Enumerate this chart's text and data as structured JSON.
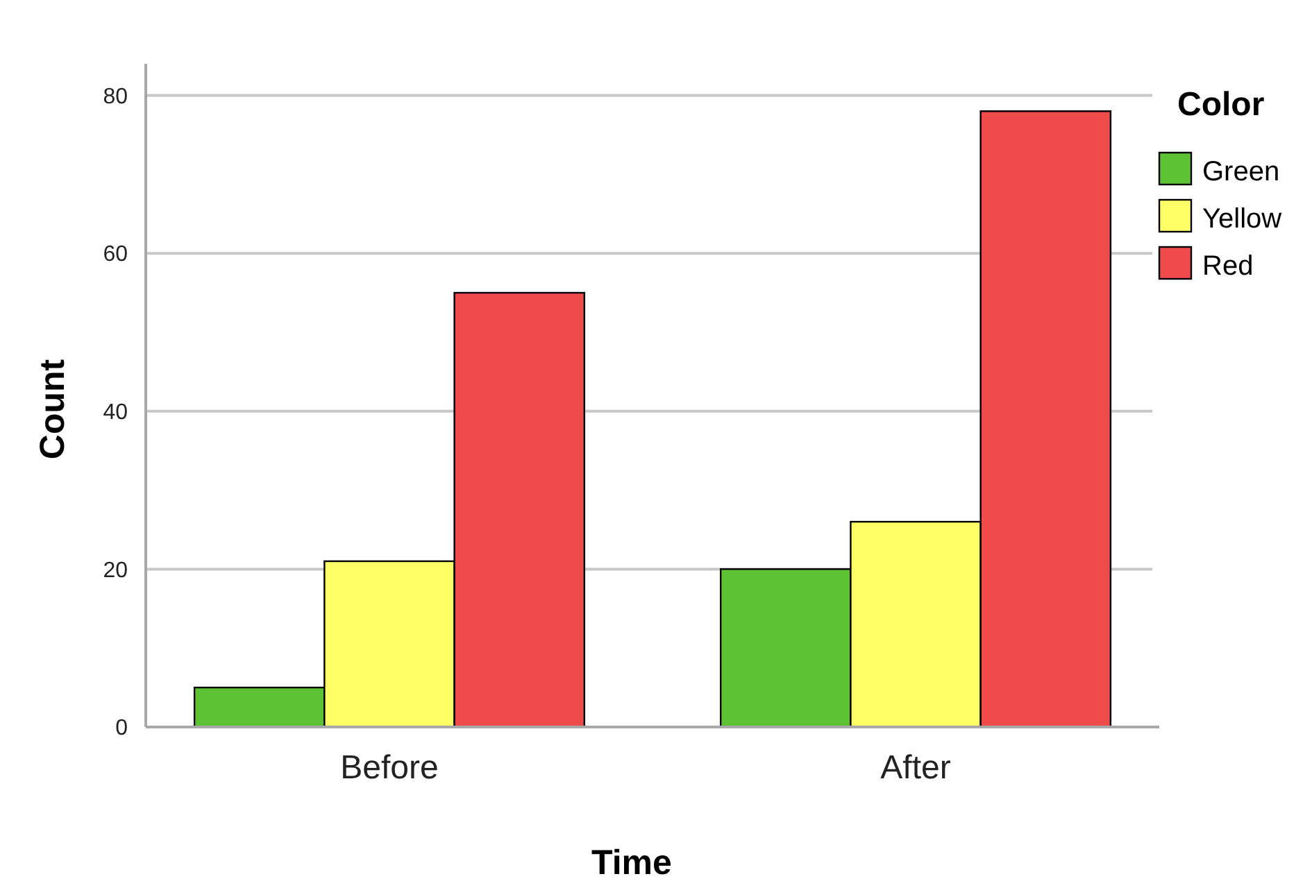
{
  "chart_data": {
    "type": "bar",
    "xlabel": "Time",
    "ylabel": "Count",
    "legend_title": "Color",
    "categories": [
      "Before",
      "After"
    ],
    "series": [
      {
        "name": "Green",
        "color": "#5ec235",
        "values": [
          5,
          20
        ]
      },
      {
        "name": "Yellow",
        "color": "#ffff66",
        "values": [
          21,
          26
        ]
      },
      {
        "name": "Red",
        "color": "#ef4b4b",
        "values": [
          55,
          78
        ]
      }
    ],
    "ylim": [
      0,
      84
    ],
    "yticks": [
      0,
      20,
      40,
      60,
      80
    ],
    "grid": "y",
    "legend": "right"
  }
}
